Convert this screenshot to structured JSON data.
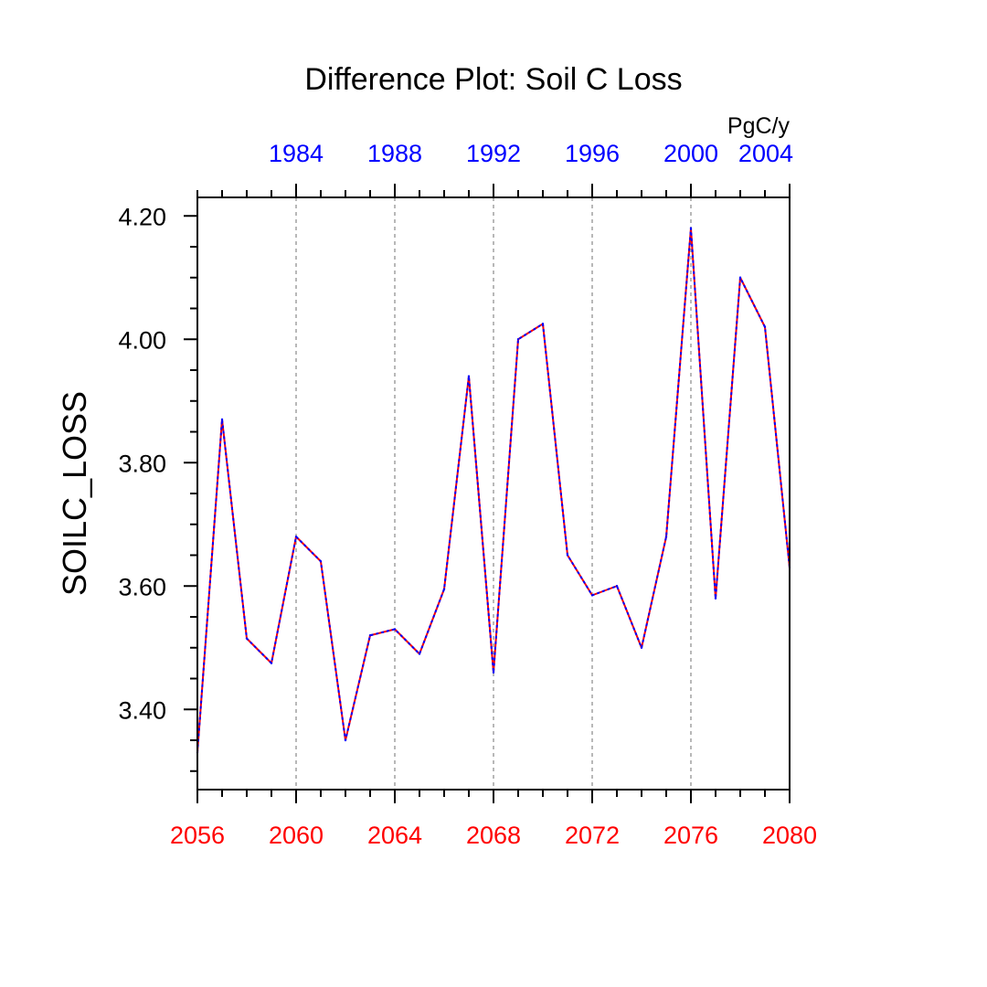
{
  "chart_data": {
    "type": "line",
    "title": "Difference Plot: Soil C Loss",
    "units_label": "PgC/y",
    "ylabel": "SOILC_LOSS",
    "xlabel": "",
    "xlim": [
      2056,
      2080
    ],
    "ylim": [
      3.27,
      4.23
    ],
    "x_ticks": [
      2056,
      2060,
      2064,
      2068,
      2072,
      2076,
      2080
    ],
    "x_tick_labels": [
      "2056",
      "2060",
      "2064",
      "2068",
      "2072",
      "2076",
      "2080"
    ],
    "x_minor_step": 1,
    "y_ticks": [
      3.4,
      3.6,
      3.8,
      4.0,
      4.2
    ],
    "y_tick_labels": [
      "3.40",
      "3.60",
      "3.80",
      "4.00",
      "4.20"
    ],
    "y_minor_step": 0.05,
    "top_axis": {
      "offset_years": -76,
      "ticks": [
        1984,
        1988,
        1992,
        1996,
        2000,
        2004
      ],
      "tick_labels": [
        "1984",
        "1988",
        "1992",
        "1996",
        "2000",
        "2004"
      ],
      "color": "#0000ff"
    },
    "grid": "vertical dashed at major bottom ticks",
    "series": [
      {
        "name": "SOILC_LOSS",
        "color_base": "#ff0000",
        "color_overlay": "#0000ff",
        "x": [
          2056,
          2057,
          2058,
          2059,
          2060,
          2061,
          2062,
          2063,
          2064,
          2065,
          2066,
          2067,
          2068,
          2069,
          2070,
          2071,
          2072,
          2073,
          2074,
          2075,
          2076,
          2077,
          2078,
          2079,
          2080
        ],
        "values": [
          3.33,
          3.87,
          3.515,
          3.475,
          3.68,
          3.64,
          3.35,
          3.52,
          3.53,
          3.49,
          3.595,
          3.94,
          3.46,
          4.0,
          4.025,
          3.65,
          3.585,
          3.6,
          3.5,
          3.68,
          4.18,
          3.58,
          4.1,
          4.02,
          3.63
        ]
      }
    ],
    "colors": {
      "bottom_tick_labels": "#ff0000",
      "top_tick_labels": "#0000ff",
      "grid": "#a0a0a0"
    }
  }
}
